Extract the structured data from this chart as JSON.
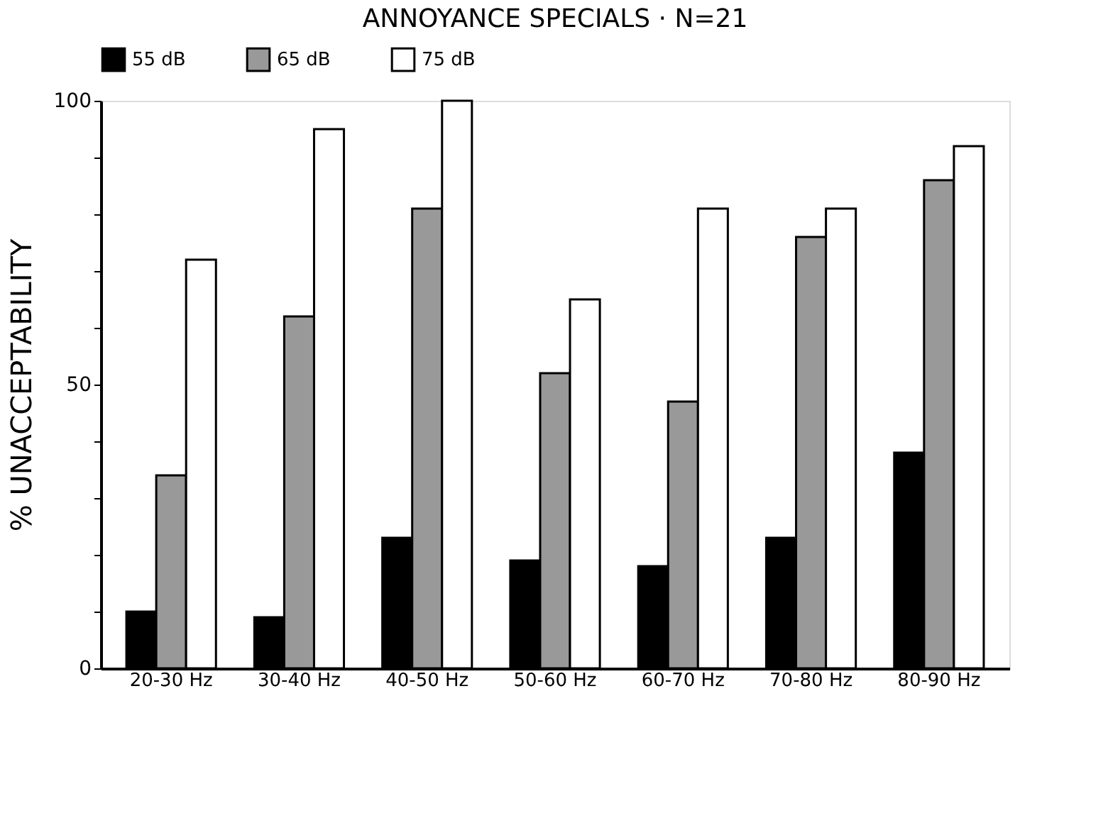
{
  "chart_data": {
    "type": "bar",
    "title": "ANNOYANCE   SPECIALS · N=21",
    "ylabel": "% UNACCEPTABILITY",
    "categories": [
      "20-30 Hz",
      "30-40 Hz",
      "40-50 Hz",
      "50-60 Hz",
      "60-70 Hz",
      "70-80 Hz",
      "80-90 Hz"
    ],
    "series": [
      {
        "name": "55 dB",
        "color": "#000000",
        "values": [
          10,
          9,
          23,
          19,
          18,
          23,
          38
        ]
      },
      {
        "name": "65 dB",
        "color": "#999999",
        "values": [
          34,
          62,
          81,
          52,
          47,
          76,
          86
        ]
      },
      {
        "name": "75 dB",
        "color": "#ffffff",
        "values": [
          72,
          95,
          100,
          65,
          81,
          81,
          92
        ]
      }
    ],
    "ylim": [
      0,
      100
    ],
    "yticks": [
      0,
      {
        "value": 10,
        "label": null
      },
      {
        "value": 20,
        "label": null
      },
      {
        "value": 30,
        "label": null
      },
      {
        "value": 40,
        "label": null
      },
      50,
      {
        "value": 60,
        "label": null
      },
      {
        "value": 70,
        "label": null
      },
      {
        "value": 80,
        "label": null
      },
      {
        "value": 90,
        "label": null
      },
      100
    ],
    "grid": false,
    "legend": "top"
  }
}
